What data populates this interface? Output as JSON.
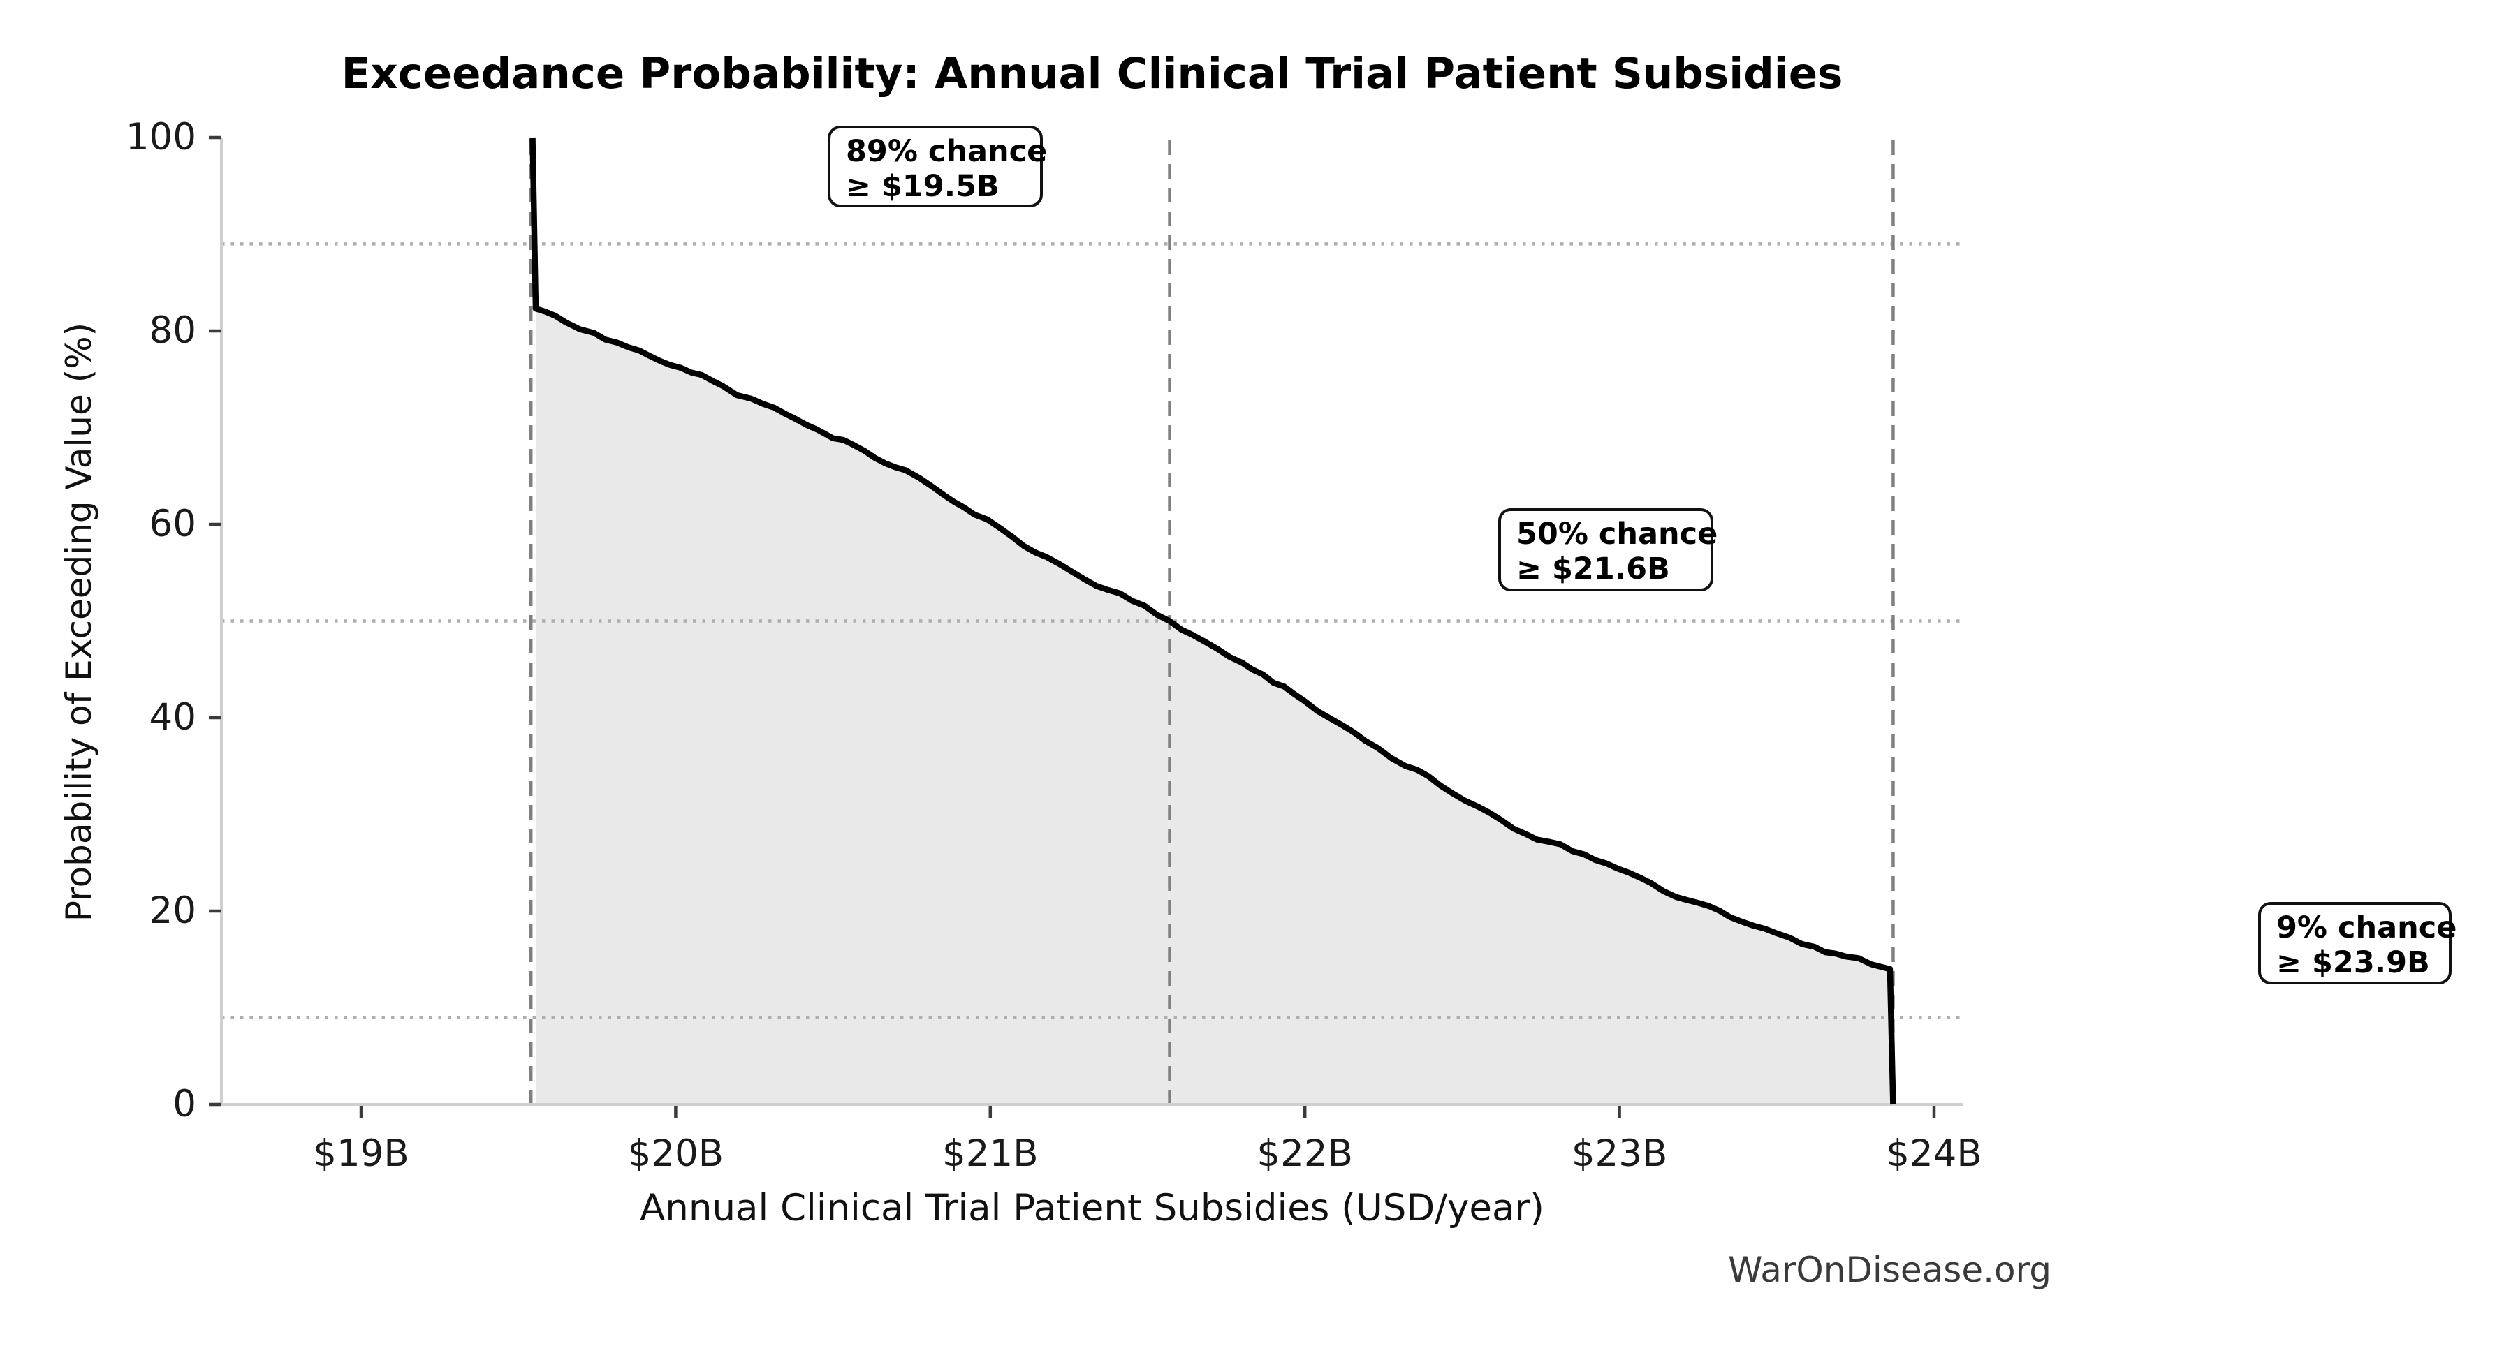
{
  "watermark": "WarOnDisease.org",
  "chart_data": {
    "type": "line",
    "subtype": "exceedance-probability-area",
    "title": "Exceedance Probability: Annual Clinical Trial Patient Subsidies",
    "xlabel": "Annual Clinical Trial Patient Subsidies (USD/year)",
    "ylabel": "Probability of Exceeding Value (%)",
    "x_unit": "USD billions per year",
    "xlim_bn": [
      18.56,
      24.09
    ],
    "ylim_pct": [
      0,
      100
    ],
    "grid": "dotted horizontal reference lines at threshold probabilities; dashed vertical lines at threshold values",
    "legend": "none",
    "line_color": "#000000",
    "fill_color": "#e9e9e9",
    "x_ticks": [
      {
        "label": "$19B",
        "value": 19
      },
      {
        "label": "$20B",
        "value": 20
      },
      {
        "label": "$21B",
        "value": 21
      },
      {
        "label": "$22B",
        "value": 22
      },
      {
        "label": "$23B",
        "value": 23
      },
      {
        "label": "$24B",
        "value": 24
      }
    ],
    "y_ticks": [
      {
        "label": "0",
        "value": 0
      },
      {
        "label": "20",
        "value": 20
      },
      {
        "label": "40",
        "value": 40
      },
      {
        "label": "60",
        "value": 60
      },
      {
        "label": "80",
        "value": 80
      },
      {
        "label": "100",
        "value": 100
      }
    ],
    "thresholds": [
      {
        "prob_pct": 89,
        "value_bn": 19.54
      },
      {
        "prob_pct": 50,
        "value_bn": 21.57
      },
      {
        "prob_pct": 9,
        "value_bn": 23.87
      }
    ],
    "annotations": [
      {
        "line1": "89% chance",
        "line2": "≥ $19.5B"
      },
      {
        "line1": "50% chance",
        "line2": "≥ $21.6B"
      },
      {
        "line1": "9% chance",
        "line2": "≥ $23.9B"
      }
    ],
    "curve_points_bn_pct": [
      [
        19.545,
        100.0
      ],
      [
        19.555,
        82.3
      ],
      [
        19.65,
        80.9
      ],
      [
        19.74,
        79.8
      ],
      [
        19.85,
        78.3
      ],
      [
        19.95,
        76.9
      ],
      [
        20.05,
        75.7
      ],
      [
        20.15,
        74.3
      ],
      [
        20.24,
        73.0
      ],
      [
        20.35,
        71.4
      ],
      [
        20.45,
        69.8
      ],
      [
        20.5,
        68.9
      ],
      [
        20.6,
        67.6
      ],
      [
        20.73,
        65.6
      ],
      [
        20.82,
        63.8
      ],
      [
        20.95,
        61.0
      ],
      [
        21.07,
        58.7
      ],
      [
        21.18,
        56.6
      ],
      [
        21.3,
        54.3
      ],
      [
        21.45,
        52.1
      ],
      [
        21.57,
        50.0
      ],
      [
        21.68,
        47.9
      ],
      [
        21.8,
        45.7
      ],
      [
        21.9,
        43.6
      ],
      [
        22.0,
        41.7
      ],
      [
        22.12,
        39.2
      ],
      [
        22.23,
        36.9
      ],
      [
        22.32,
        35.0
      ],
      [
        22.43,
        33.0
      ],
      [
        22.55,
        30.8
      ],
      [
        22.7,
        28.0
      ],
      [
        22.85,
        26.2
      ],
      [
        22.96,
        24.9
      ],
      [
        23.1,
        22.9
      ],
      [
        23.22,
        21.1
      ],
      [
        23.35,
        19.4
      ],
      [
        23.5,
        17.7
      ],
      [
        23.62,
        16.3
      ],
      [
        23.72,
        15.3
      ],
      [
        23.8,
        14.5
      ],
      [
        23.86,
        14.0
      ],
      [
        23.87,
        0.0
      ]
    ]
  }
}
